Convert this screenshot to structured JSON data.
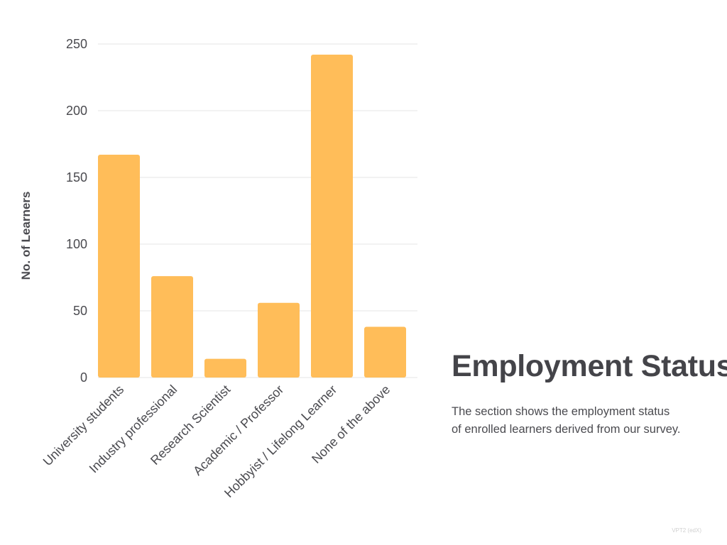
{
  "chart_data": {
    "type": "bar",
    "categories": [
      "University students",
      "Industry professional",
      "Research Scientist",
      "Academic / Professor",
      "Hobbyist / Lifelong Learner",
      "None of the above"
    ],
    "values": [
      167,
      76,
      14,
      56,
      242,
      38
    ],
    "title": "",
    "xlabel": "",
    "ylabel": "No. of Learners",
    "ylim": [
      0,
      250
    ],
    "yticks": [
      0,
      50,
      100,
      150,
      200,
      250
    ],
    "grid": true,
    "bar_color": "#FFBD59"
  },
  "panel": {
    "title": "Employment Status",
    "description_line1": "The section shows the employment status",
    "description_line2": "of enrolled learners derived from our survey."
  },
  "footer": {
    "note": "VPT2 (edX)"
  }
}
